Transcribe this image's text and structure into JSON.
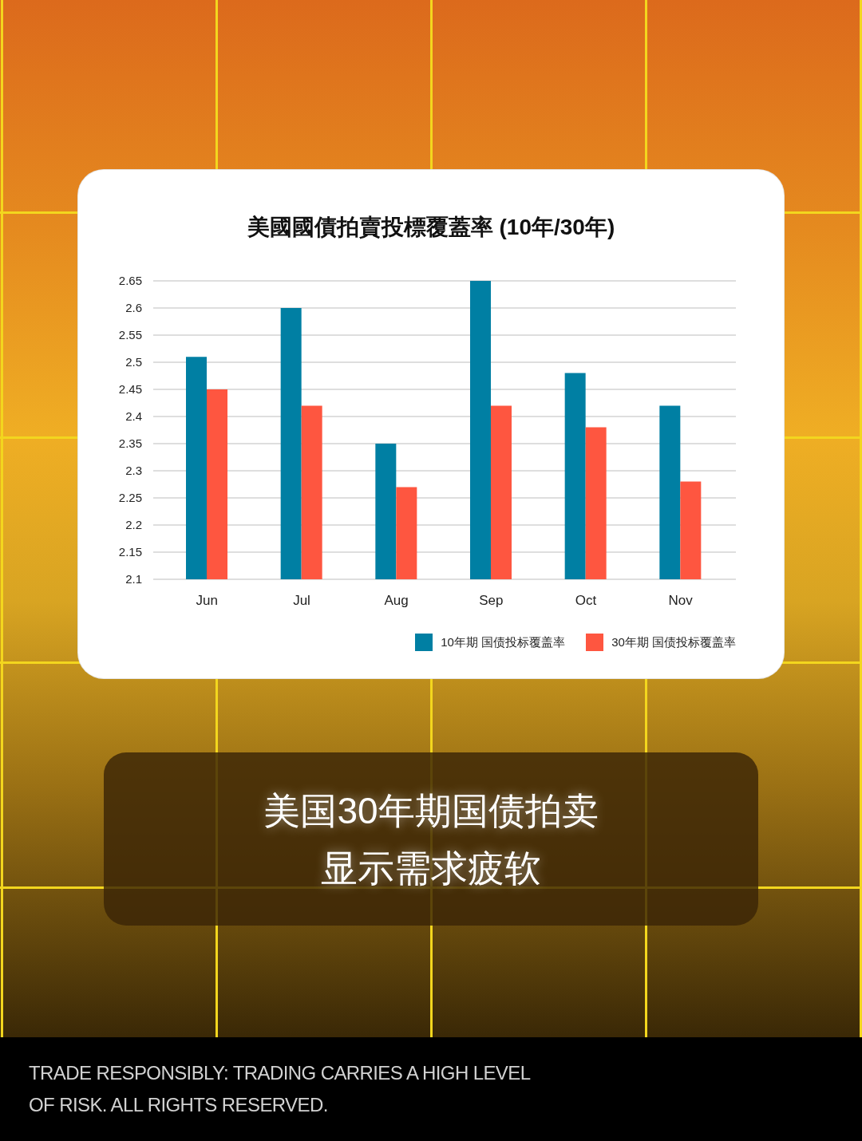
{
  "chart_data": {
    "type": "bar",
    "title": "美國國債拍賣投標覆蓋率 (10年/30年)",
    "categories": [
      "Jun",
      "Jul",
      "Aug",
      "Sep",
      "Oct",
      "Nov"
    ],
    "series": [
      {
        "name": "10年期 国债投标覆盖率",
        "color": "#007fa3",
        "values": [
          2.51,
          2.6,
          2.35,
          2.65,
          2.48,
          2.42
        ]
      },
      {
        "name": "30年期 国债投标覆盖率",
        "color": "#fe5640",
        "values": [
          2.45,
          2.42,
          2.27,
          2.42,
          2.38,
          2.28
        ]
      }
    ],
    "ylim": [
      2.1,
      2.65
    ],
    "yticks": [
      2.1,
      2.15,
      2.2,
      2.25,
      2.3,
      2.35,
      2.4,
      2.45,
      2.5,
      2.55,
      2.6,
      2.65
    ],
    "grid": "y",
    "legend": "bottom right",
    "annotations": [
      "美国30年期国债拍卖",
      "显示需求疲软",
      "TRADE RESPONSIBLY: TRADING CARRIES A HIGH LEVEL OF RISK. ALL RIGHTS RESERVED."
    ]
  }
}
